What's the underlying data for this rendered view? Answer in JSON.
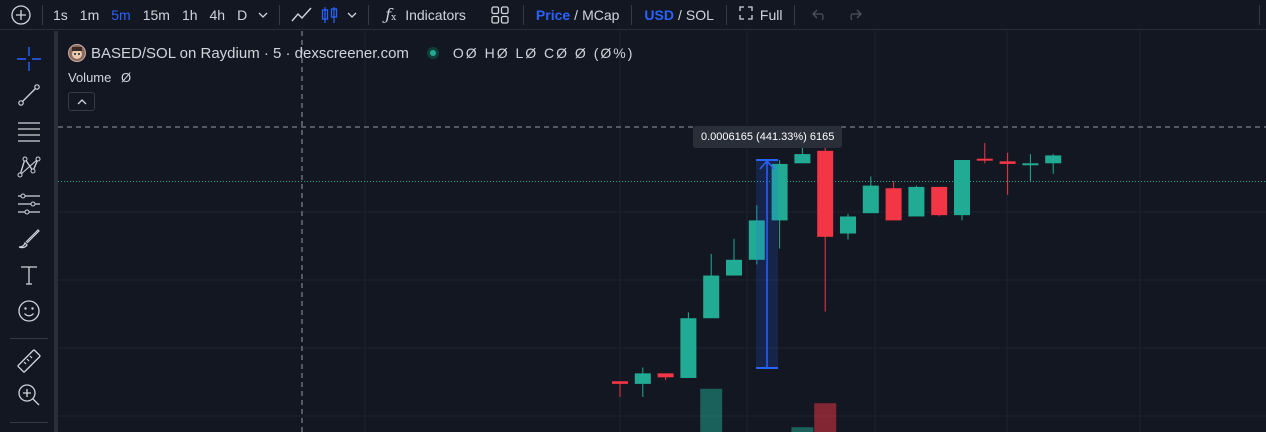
{
  "toolbar": {
    "intervals": [
      "1s",
      "1m",
      "5m",
      "15m",
      "1h",
      "4h",
      "D"
    ],
    "active_interval": "5m",
    "indicators_label": "Indicators",
    "price_label": "Price",
    "mcap_label": "MCap",
    "usd_label": "USD",
    "sol_label": "SOL",
    "slash": "/",
    "full_label": "Full"
  },
  "legend": {
    "title": "BASED/SOL on Raydium · 5 · dexscreener.com",
    "ohlc": "OØ HØ LØ CØ Ø (Ø%)",
    "volume_label": "Volume",
    "volume_value": "Ø"
  },
  "measure": {
    "label": "0.0006165 (441.33%) 6165"
  },
  "colors": {
    "background": "#131722",
    "up": "#22ab94",
    "down": "#f23645",
    "accent": "#2962ff"
  },
  "chart_data": {
    "type": "candlestick",
    "candles": [
      {
        "o": 0.00014,
        "h": 0.00014,
        "l": 0.000116,
        "c": 0.000136
      },
      {
        "o": 0.000136,
        "h": 0.000161,
        "l": 0.000116,
        "c": 0.000152
      },
      {
        "o": 0.000152,
        "h": 0.000152,
        "l": 0.000142,
        "c": 0.000146
      },
      {
        "o": 0.000145,
        "h": 0.000245,
        "l": 0.000145,
        "c": 0.000236
      },
      {
        "o": 0.000236,
        "h": 0.000334,
        "l": 0.000236,
        "c": 0.000301
      },
      {
        "o": 0.000301,
        "h": 0.000357,
        "l": 0.000301,
        "c": 0.000325
      },
      {
        "o": 0.000325,
        "h": 0.000408,
        "l": 0.000318,
        "c": 0.000385
      },
      {
        "o": 0.000385,
        "h": 0.000477,
        "l": 0.000342,
        "c": 0.000471
      },
      {
        "o": 0.000472,
        "h": 0.000509,
        "l": 0.000472,
        "c": 0.000486
      },
      {
        "o": 0.000491,
        "h": 0.000512,
        "l": 0.000246,
        "c": 0.00036
      },
      {
        "o": 0.000365,
        "h": 0.000395,
        "l": 0.000356,
        "c": 0.000391
      },
      {
        "o": 0.000396,
        "h": 0.000452,
        "l": 0.000396,
        "c": 0.000438
      },
      {
        "o": 0.000434,
        "h": 0.000445,
        "l": 0.000385,
        "c": 0.000385
      },
      {
        "o": 0.000391,
        "h": 0.000438,
        "l": 0.000391,
        "c": 0.000436
      },
      {
        "o": 0.000436,
        "h": 0.000436,
        "l": 0.000391,
        "c": 0.000393
      },
      {
        "o": 0.000393,
        "h": 0.000477,
        "l": 0.000385,
        "c": 0.000477
      },
      {
        "o": 0.000479,
        "h": 0.000503,
        "l": 0.000472,
        "c": 0.000477
      },
      {
        "o": 0.000475,
        "h": 0.000488,
        "l": 0.000424,
        "c": 0.000471
      },
      {
        "o": 0.000471,
        "h": 0.000486,
        "l": 0.000445,
        "c": 0.000472
      },
      {
        "o": 0.000472,
        "h": 0.000486,
        "l": 0.000456,
        "c": 0.000484
      }
    ],
    "volume": [
      {
        "index": 4,
        "value": 0.72,
        "direction": "up"
      },
      {
        "index": 8,
        "value": 0.08,
        "direction": "up"
      },
      {
        "index": 9,
        "value": 0.48,
        "direction": "down"
      }
    ]
  }
}
